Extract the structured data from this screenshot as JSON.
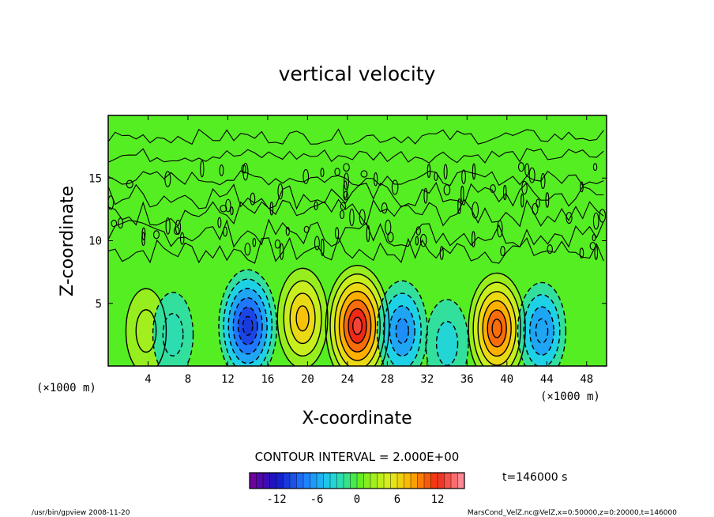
{
  "chart_data": {
    "type": "heatmap",
    "title": "vertical velocity",
    "xlabel": "X-coordinate",
    "ylabel": "Z-coordinate",
    "x_unit_label": "(×1000 m)",
    "y_unit_label": "(×1000 m)",
    "xlim": [
      0,
      50
    ],
    "ylim": [
      0,
      20
    ],
    "x_ticks": [
      4,
      8,
      12,
      16,
      20,
      24,
      28,
      32,
      36,
      40,
      44,
      48
    ],
    "y_ticks": [
      5,
      10,
      15
    ],
    "colorbar": {
      "min": -16,
      "max": 16,
      "levels": 32,
      "tick_values": [
        -12,
        -6,
        0,
        6,
        12
      ],
      "tick_labels": [
        "-12",
        "-6",
        "0",
        "6",
        "12"
      ]
    },
    "contour_interval_text": "CONTOUR INTERVAL = 2.000E+00",
    "time_text": "t=146000 s",
    "cells": [
      {
        "x": 3.8,
        "z": 2.8,
        "w": 2.5
      },
      {
        "x": 6.5,
        "z": 2.5,
        "w": -2.5
      },
      {
        "x": 14.0,
        "z": 3.2,
        "w": -10.5
      },
      {
        "x": 19.5,
        "z": 3.8,
        "w": 7.0
      },
      {
        "x": 25.0,
        "z": 3.2,
        "w": 13.0
      },
      {
        "x": 29.5,
        "z": 2.8,
        "w": -7.0
      },
      {
        "x": 34.0,
        "z": 1.8,
        "w": -3.5
      },
      {
        "x": 39.0,
        "z": 3.0,
        "w": 10.0
      },
      {
        "x": 43.5,
        "z": 2.8,
        "w": -6.0
      }
    ]
  },
  "footer": {
    "left": "/usr/bin/gpview  2008-11-20",
    "right": "MarsCond_VelZ.nc@VelZ,x=0:50000,z=0:20000,t=146000"
  },
  "colors": {
    "background_green": "#55ee22",
    "contour": "#000000"
  }
}
